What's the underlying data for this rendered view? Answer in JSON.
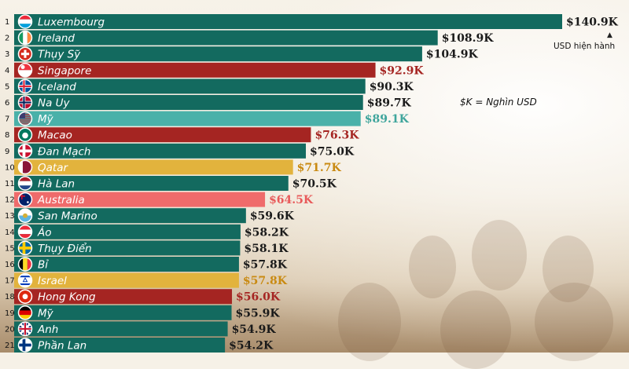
{
  "chart_data": {
    "type": "bar",
    "orientation": "horizontal",
    "unit_note": "USD hiện hành",
    "k_note": "$K = Nghìn USD",
    "rows": [
      {
        "rank": "1",
        "country": "Luxembourg",
        "value": 140.9,
        "label": "$140.9K",
        "color": "#136a5f",
        "flag": "luxembourg-flag-icon"
      },
      {
        "rank": "2",
        "country": "Ireland",
        "value": 108.9,
        "label": "$108.9K",
        "color": "#136a5f",
        "flag": "ireland-flag-icon"
      },
      {
        "rank": "3",
        "country": "Thụy Sỹ",
        "value": 104.9,
        "label": "$104.9K",
        "color": "#136a5f",
        "flag": "switzerland-flag-icon"
      },
      {
        "rank": "4",
        "country": "Singapore",
        "value": 92.9,
        "label": "$92.9K",
        "color": "#a52522",
        "flag": "singapore-flag-icon"
      },
      {
        "rank": "5",
        "country": "Iceland",
        "value": 90.3,
        "label": "$90.3K",
        "color": "#136a5f",
        "flag": "iceland-flag-icon"
      },
      {
        "rank": "6",
        "country": "Na Uy",
        "value": 89.7,
        "label": "$89.7K",
        "color": "#136a5f",
        "flag": "norway-flag-icon"
      },
      {
        "rank": "7",
        "country": "Mỹ",
        "value": 89.1,
        "label": "$89.1K",
        "color": "#4ab1a9",
        "flag": "usa-flag-icon"
      },
      {
        "rank": "8",
        "country": "Macao",
        "value": 76.3,
        "label": "$76.3K",
        "color": "#a52522",
        "flag": "macao-flag-icon"
      },
      {
        "rank": "9",
        "country": "Đan Mạch",
        "value": 75.0,
        "label": "$75.0K",
        "color": "#136a5f",
        "flag": "denmark-flag-icon"
      },
      {
        "rank": "10",
        "country": "Qatar",
        "value": 71.7,
        "label": "$71.7K",
        "color": "#e2b33d",
        "flag": "qatar-flag-icon"
      },
      {
        "rank": "11",
        "country": "Hà Lan",
        "value": 70.5,
        "label": "$70.5K",
        "color": "#136a5f",
        "flag": "netherlands-flag-icon"
      },
      {
        "rank": "12",
        "country": "Australia",
        "value": 64.5,
        "label": "$64.5K",
        "color": "#ef6b6b",
        "flag": "australia-flag-icon"
      },
      {
        "rank": "13",
        "country": "San Marino",
        "value": 59.6,
        "label": "$59.6K",
        "color": "#136a5f",
        "flag": "san-marino-flag-icon"
      },
      {
        "rank": "14",
        "country": "Áo",
        "value": 58.2,
        "label": "$58.2K",
        "color": "#136a5f",
        "flag": "austria-flag-icon"
      },
      {
        "rank": "15",
        "country": "Thụy Điển",
        "value": 58.1,
        "label": "$58.1K",
        "color": "#136a5f",
        "flag": "sweden-flag-icon"
      },
      {
        "rank": "16",
        "country": "Bỉ",
        "value": 57.8,
        "label": "$57.8K",
        "color": "#136a5f",
        "flag": "belgium-flag-icon"
      },
      {
        "rank": "17",
        "country": "Israel",
        "value": 57.8,
        "label": "$57.8K",
        "color": "#e2b33d",
        "flag": "israel-flag-icon"
      },
      {
        "rank": "18",
        "country": "Hong Kong",
        "value": 56.0,
        "label": "$56.0K",
        "color": "#a52522",
        "flag": "hong-kong-flag-icon"
      },
      {
        "rank": "19",
        "country": "Mỹ",
        "value": 55.9,
        "label": "$55.9K",
        "color": "#136a5f",
        "flag": "germany-flag-icon"
      },
      {
        "rank": "20",
        "country": "Anh",
        "value": 54.9,
        "label": "$54.9K",
        "color": "#136a5f",
        "flag": "uk-flag-icon"
      },
      {
        "rank": "21",
        "country": "Phần Lan",
        "value": 54.2,
        "label": "$54.2K",
        "color": "#136a5f",
        "flag": "finland-flag-icon"
      }
    ]
  }
}
